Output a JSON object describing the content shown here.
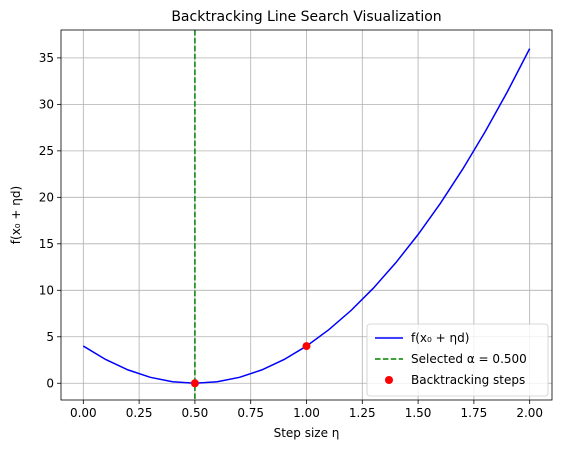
{
  "chart_data": {
    "type": "line",
    "title": "Backtracking Line Search Visualization",
    "xlabel": "Step size η",
    "ylabel": "f(x₀ + ηd)",
    "xlim": [
      -0.1,
      2.1
    ],
    "ylim": [
      -1.8,
      38
    ],
    "xticks": [
      0.0,
      0.25,
      0.5,
      0.75,
      1.0,
      1.25,
      1.5,
      1.75,
      2.0
    ],
    "xtick_labels": [
      "0.00",
      "0.25",
      "0.50",
      "0.75",
      "1.00",
      "1.25",
      "1.50",
      "1.75",
      "2.00"
    ],
    "yticks": [
      0,
      5,
      10,
      15,
      20,
      25,
      30,
      35
    ],
    "ytick_labels": [
      "0",
      "5",
      "10",
      "15",
      "20",
      "25",
      "30",
      "35"
    ],
    "grid": true,
    "legend_position": "lower-right",
    "series": [
      {
        "name": "f(x₀ + ηd)",
        "kind": "line",
        "color": "#0000ff",
        "x": [
          0.0,
          0.1,
          0.2,
          0.3,
          0.4,
          0.5,
          0.6,
          0.7,
          0.8,
          0.9,
          1.0,
          1.1,
          1.2,
          1.3,
          1.4,
          1.5,
          1.6,
          1.7,
          1.8,
          1.9,
          2.0
        ],
        "y": [
          4.0,
          2.56,
          1.44,
          0.64,
          0.16,
          0.0,
          0.16,
          0.64,
          1.44,
          2.56,
          4.0,
          5.76,
          7.84,
          10.24,
          12.96,
          16.0,
          19.36,
          23.04,
          27.04,
          31.36,
          36.0
        ]
      },
      {
        "name": "Selected α = 0.500",
        "kind": "vline",
        "color": "#008000",
        "x": 0.5
      },
      {
        "name": "Backtracking steps",
        "kind": "scatter",
        "color": "#ff0000",
        "x": [
          1.0,
          0.5
        ],
        "y": [
          4.0,
          0.0
        ]
      }
    ]
  }
}
